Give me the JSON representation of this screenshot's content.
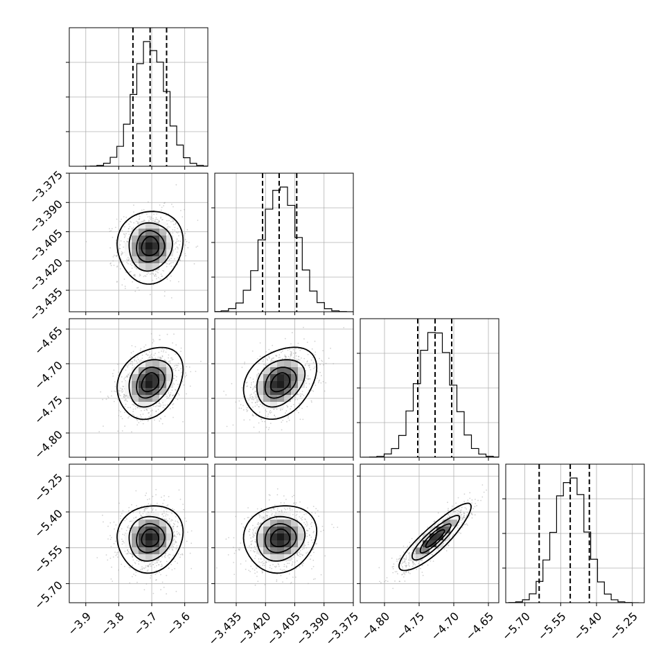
{
  "chart_data": {
    "type": "corner",
    "title": "",
    "parameters": [
      {
        "range": [
          -3.95,
          -3.53
        ],
        "ticks": [
          -3.9,
          -3.8,
          -3.7,
          -3.6
        ],
        "tick_labels": [
          "−3.9",
          "−3.8",
          "−3.7",
          "−3.6"
        ],
        "mean": -3.705,
        "sigma": 0.048,
        "quantiles": [
          -3.757,
          -3.705,
          -3.655
        ]
      },
      {
        "range": [
          -3.446,
          -3.375
        ],
        "ticks": [
          -3.435,
          -3.42,
          -3.405,
          -3.39,
          -3.375
        ],
        "tick_labels": [
          "−3.435",
          "−3.420",
          "−3.405",
          "−3.390",
          "−3.375"
        ],
        "mean": -3.4125,
        "sigma": 0.009,
        "quantiles": [
          -3.4215,
          -3.413,
          -3.404
        ]
      },
      {
        "range": [
          -4.835,
          -4.635
        ],
        "ticks": [
          -4.8,
          -4.75,
          -4.7,
          -4.65
        ],
        "tick_labels": [
          "−4.80",
          "−4.75",
          "−4.70",
          "−4.65"
        ],
        "mean": -4.727,
        "sigma": 0.025,
        "quantiles": [
          -4.752,
          -4.727,
          -4.703
        ]
      },
      {
        "range": [
          -5.78,
          -5.2
        ],
        "ticks": [
          -5.7,
          -5.55,
          -5.4,
          -5.25
        ],
        "tick_labels": [
          "−5.70",
          "−5.55",
          "−5.40",
          "−5.25"
        ],
        "mean": -5.51,
        "sigma": 0.068,
        "quantiles": [
          -5.64,
          -5.51,
          -5.43
        ]
      }
    ],
    "correlations": [
      [
        1.0,
        0.05,
        0.25,
        0.08
      ],
      [
        0.05,
        1.0,
        0.3,
        0.1
      ],
      [
        0.25,
        0.3,
        1.0,
        0.88
      ],
      [
        0.08,
        0.1,
        0.88,
        1.0
      ]
    ],
    "contour_levels_sigma": [
      0.5,
      1.0,
      1.5,
      2.0
    ],
    "histogram_bins": 20,
    "grid": true,
    "axis_labels": [
      "",
      "",
      "",
      ""
    ]
  }
}
